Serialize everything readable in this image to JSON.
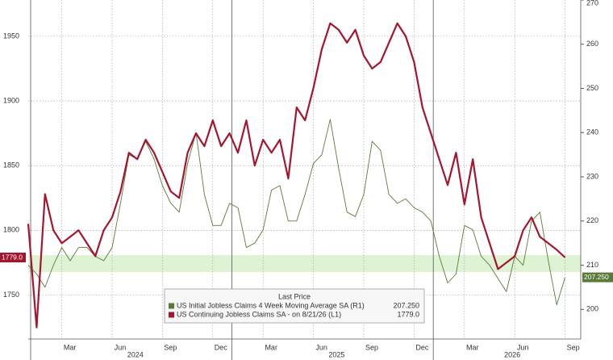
{
  "chart_data": {
    "type": "line",
    "categories": [
      null,
      null,
      null,
      null,
      "Mar",
      null,
      null,
      null,
      null,
      null,
      "Jun",
      null,
      null,
      null,
      null,
      null,
      "Sep",
      null,
      null,
      null,
      null,
      null,
      "Dec",
      null,
      null,
      null,
      null,
      null,
      "Mar",
      null,
      null,
      null,
      null,
      null,
      "Jun",
      null,
      null,
      null,
      null,
      null,
      "Sep",
      null,
      null,
      null,
      null,
      null,
      "Dec",
      null,
      null,
      null,
      null,
      null,
      "Mar",
      null,
      null,
      null,
      null,
      null,
      "Jun",
      null,
      null,
      null,
      null,
      null,
      "Sep"
    ],
    "years": [
      "2024",
      "2025",
      "2026"
    ],
    "legend_title": "Last Price",
    "series": [
      {
        "name": "US Initial Jobless Claims 4 Week Moving Average SA (R1)",
        "color": "#5a7a3a",
        "axis": "y2",
        "last_label": "207.250",
        "values": [
          210,
          208,
          205,
          210,
          214,
          211,
          214,
          214,
          212,
          211,
          214,
          224,
          235,
          234,
          238,
          234,
          228,
          224,
          222,
          233,
          240,
          226,
          219,
          219,
          224,
          223,
          214,
          215,
          218,
          227,
          228,
          220,
          220,
          226,
          233,
          235,
          243,
          232,
          222,
          221,
          226,
          238,
          236,
          226,
          224,
          225,
          223,
          222,
          220,
          212,
          206,
          208,
          219,
          218,
          212,
          210,
          207,
          204,
          212,
          210,
          220,
          222,
          211,
          201,
          207.25
        ]
      },
      {
        "name": "US Continuing Jobless Claims SA - on 8/21/26 (L1)",
        "color": "#a3162e",
        "last_label": "1779.0",
        "values": [
          1805,
          1725,
          1828,
          1800,
          1790,
          1795,
          1800,
          1790,
          1780,
          1800,
          1810,
          1830,
          1860,
          1855,
          1870,
          1860,
          1845,
          1830,
          1825,
          1860,
          1875,
          1865,
          1885,
          1865,
          1875,
          1860,
          1885,
          1850,
          1870,
          1860,
          1870,
          1840,
          1895,
          1885,
          1910,
          1940,
          1960,
          1955,
          1945,
          1955,
          1935,
          1925,
          1930,
          1945,
          1960,
          1950,
          1930,
          1895,
          1875,
          1855,
          1835,
          1860,
          1820,
          1855,
          1810,
          1790,
          1770,
          1775,
          1780,
          1800,
          1810,
          1795,
          1790,
          1785,
          1779
        ]
      }
    ],
    "ylim": [
      1716,
      1978
    ],
    "yticks": [
      1750,
      1800,
      1850,
      1900,
      1950
    ],
    "y2lim": [
      193.3,
      270
    ],
    "y2ticks": [
      200,
      210,
      220,
      230,
      240,
      250,
      260,
      270
    ],
    "grid": true
  }
}
